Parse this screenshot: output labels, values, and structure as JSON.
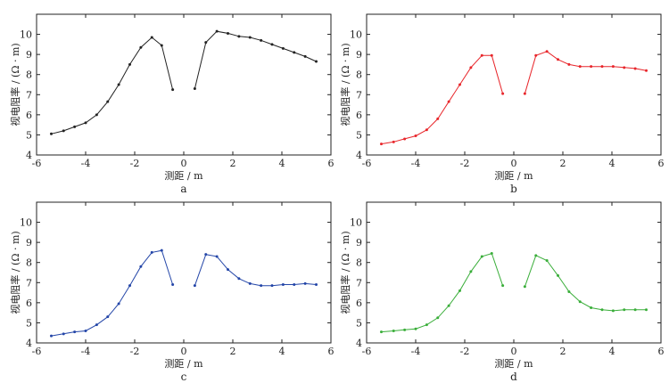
{
  "chart_data": [
    {
      "type": "line",
      "panel_label": "a",
      "xlabel": "测距 / m",
      "ylabel": "视电阻率 / (Ω · m)",
      "xlim": [
        -6,
        6
      ],
      "ylim": [
        4,
        11
      ],
      "xticks": [
        "-6",
        "-4",
        "-2",
        "0",
        "2",
        "4",
        "6"
      ],
      "yticks": [
        "4",
        "5",
        "6",
        "7",
        "8",
        "9",
        "10"
      ],
      "color": "#222222",
      "series": [
        {
          "name": "left",
          "x": [
            -5.4,
            -4.9,
            -4.45,
            -4.0,
            -3.55,
            -3.1,
            -2.65,
            -2.2,
            -1.75,
            -1.3,
            -0.9,
            -0.45
          ],
          "y": [
            5.05,
            5.2,
            5.4,
            5.6,
            6.0,
            6.65,
            7.5,
            8.5,
            9.35,
            9.85,
            9.45,
            7.25
          ]
        },
        {
          "name": "right",
          "x": [
            0.45,
            0.9,
            1.35,
            1.8,
            2.25,
            2.7,
            3.15,
            3.6,
            4.05,
            4.5,
            4.95,
            5.4
          ],
          "y": [
            7.3,
            9.6,
            10.15,
            10.05,
            9.9,
            9.85,
            9.7,
            9.5,
            9.3,
            9.1,
            8.9,
            8.65
          ]
        }
      ]
    },
    {
      "type": "line",
      "panel_label": "b",
      "xlabel": "测距 / m",
      "ylabel": "视电阻率 / (Ω · m)",
      "xlim": [
        -6,
        6
      ],
      "ylim": [
        4,
        11
      ],
      "xticks": [
        "-6",
        "-4",
        "-2",
        "0",
        "2",
        "4",
        "6"
      ],
      "yticks": [
        "4",
        "5",
        "6",
        "7",
        "8",
        "9",
        "10"
      ],
      "color": "#e8262b",
      "series": [
        {
          "name": "left",
          "x": [
            -5.4,
            -4.9,
            -4.45,
            -4.0,
            -3.55,
            -3.1,
            -2.65,
            -2.2,
            -1.75,
            -1.3,
            -0.9,
            -0.45
          ],
          "y": [
            4.55,
            4.65,
            4.8,
            4.95,
            5.25,
            5.8,
            6.65,
            7.5,
            8.35,
            8.95,
            8.95,
            7.05
          ]
        },
        {
          "name": "right",
          "x": [
            0.45,
            0.9,
            1.35,
            1.8,
            2.25,
            2.7,
            3.15,
            3.6,
            4.05,
            4.5,
            4.95,
            5.4
          ],
          "y": [
            7.05,
            8.95,
            9.15,
            8.75,
            8.5,
            8.4,
            8.4,
            8.4,
            8.4,
            8.35,
            8.3,
            8.2
          ]
        }
      ]
    },
    {
      "type": "line",
      "panel_label": "c",
      "xlabel": "测距 / m",
      "ylabel": "视电阻率 / (Ω · m)",
      "xlim": [
        -6,
        6
      ],
      "ylim": [
        4,
        11
      ],
      "xticks": [
        "-6",
        "-4",
        "-2",
        "0",
        "2",
        "4",
        "6"
      ],
      "yticks": [
        "4",
        "5",
        "6",
        "7",
        "8",
        "9",
        "10"
      ],
      "color": "#2446a8",
      "series": [
        {
          "name": "left",
          "x": [
            -5.4,
            -4.9,
            -4.45,
            -4.0,
            -3.55,
            -3.1,
            -2.65,
            -2.2,
            -1.75,
            -1.3,
            -0.9,
            -0.45
          ],
          "y": [
            4.35,
            4.45,
            4.55,
            4.6,
            4.9,
            5.3,
            5.95,
            6.85,
            7.8,
            8.5,
            8.6,
            6.9
          ]
        },
        {
          "name": "right",
          "x": [
            0.45,
            0.9,
            1.35,
            1.8,
            2.25,
            2.7,
            3.15,
            3.6,
            4.05,
            4.5,
            4.95,
            5.4
          ],
          "y": [
            6.85,
            8.4,
            8.3,
            7.65,
            7.2,
            6.95,
            6.85,
            6.85,
            6.9,
            6.9,
            6.95,
            6.9
          ]
        }
      ]
    },
    {
      "type": "line",
      "panel_label": "d",
      "xlabel": "测距 / m",
      "ylabel": "视电阻率 / (Ω · m)",
      "xlim": [
        -6,
        6
      ],
      "ylim": [
        4,
        11
      ],
      "xticks": [
        "-6",
        "-4",
        "-2",
        "0",
        "2",
        "4",
        "6"
      ],
      "yticks": [
        "4",
        "5",
        "6",
        "7",
        "8",
        "9",
        "10"
      ],
      "color": "#3aae3a",
      "series": [
        {
          "name": "left",
          "x": [
            -5.4,
            -4.9,
            -4.45,
            -4.0,
            -3.55,
            -3.1,
            -2.65,
            -2.2,
            -1.75,
            -1.3,
            -0.9,
            -0.45
          ],
          "y": [
            4.55,
            4.6,
            4.65,
            4.7,
            4.9,
            5.25,
            5.85,
            6.6,
            7.55,
            8.3,
            8.45,
            6.85
          ]
        },
        {
          "name": "right",
          "x": [
            0.45,
            0.9,
            1.35,
            1.8,
            2.25,
            2.7,
            3.15,
            3.6,
            4.05,
            4.5,
            4.95,
            5.4
          ],
          "y": [
            6.8,
            8.35,
            8.1,
            7.35,
            6.55,
            6.05,
            5.75,
            5.65,
            5.6,
            5.65,
            5.65,
            5.65
          ]
        }
      ]
    }
  ]
}
